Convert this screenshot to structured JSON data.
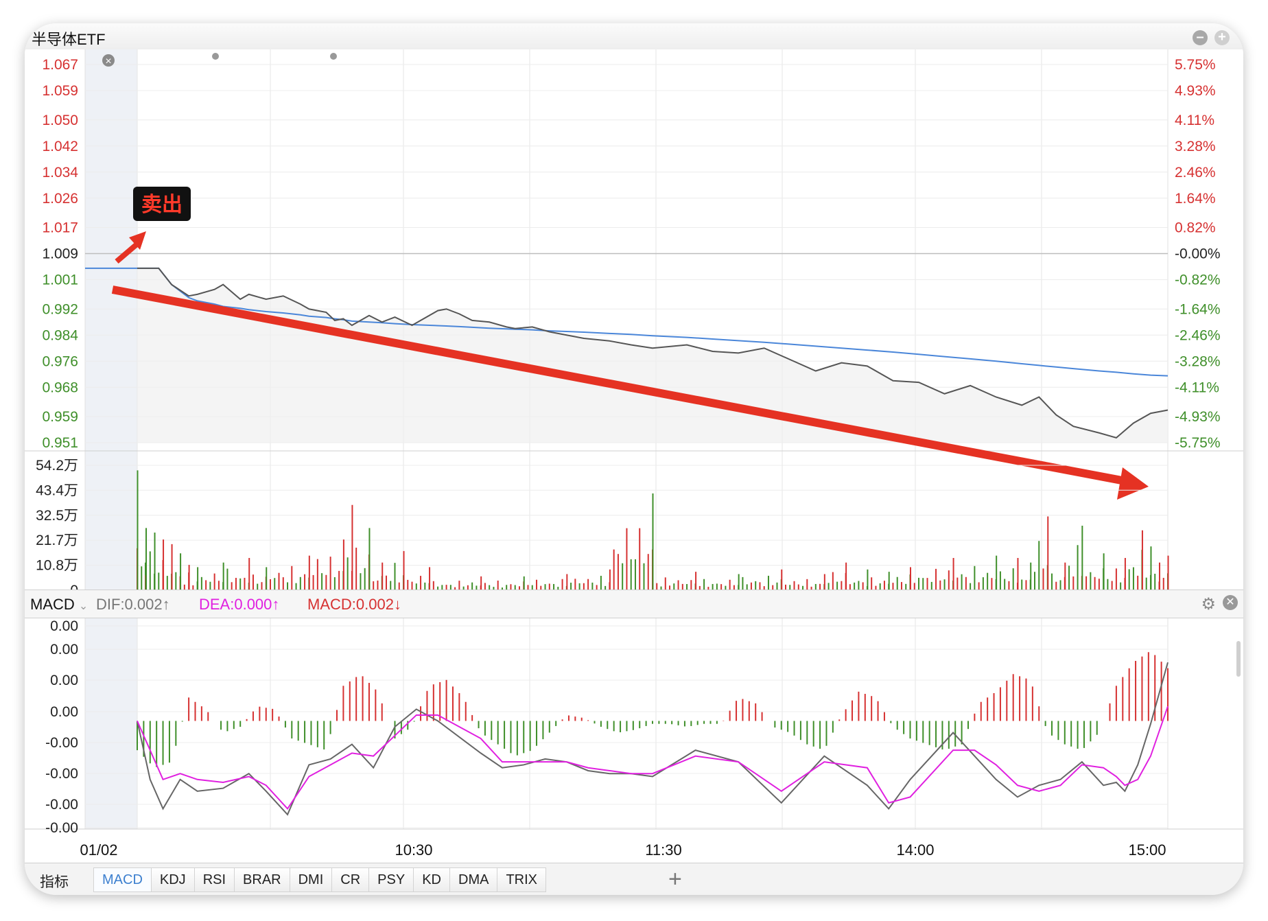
{
  "window": {
    "title": "半导体ETF",
    "minimize_icon": "minus-circle-icon",
    "add_icon": "plus-circle-icon"
  },
  "chart_data": [
    {
      "type": "line",
      "panel": "price",
      "x_ticks": [
        "01/02",
        "10:30",
        "11:30",
        "14:00",
        "15:00"
      ],
      "y_ticks_left": [
        "1.067",
        "1.059",
        "1.050",
        "1.042",
        "1.034",
        "1.026",
        "1.017",
        "1.009",
        "1.001",
        "0.992",
        "0.984",
        "0.976",
        "0.968",
        "0.959",
        "0.951"
      ],
      "y_ticks_right": [
        "5.75%",
        "4.93%",
        "4.11%",
        "3.28%",
        "2.46%",
        "1.64%",
        "0.82%",
        "-0.00%",
        "-0.82%",
        "-1.64%",
        "-2.46%",
        "-3.28%",
        "-4.11%",
        "-4.93%",
        "-5.75%"
      ],
      "ylim": [
        0.951,
        1.067
      ],
      "prev_close": 1.009,
      "x_minutes": [
        0,
        5,
        8,
        12,
        14,
        18,
        20,
        24,
        26,
        30,
        34,
        38,
        40,
        44,
        46,
        48,
        50,
        54,
        57,
        60,
        64,
        70,
        72,
        75,
        78,
        82,
        86,
        88,
        92,
        96,
        100,
        104,
        110,
        115,
        120,
        128,
        134,
        140,
        146,
        152,
        158,
        164,
        170,
        176,
        182,
        188,
        194,
        200,
        206,
        210,
        214,
        218,
        224,
        228,
        232,
        236,
        240
      ],
      "series": [
        {
          "role": "price",
          "values": [
            1.0045,
            1.0045,
            0.9995,
            0.996,
            0.9965,
            0.998,
            0.9995,
            0.995,
            0.9965,
            0.995,
            0.996,
            0.9935,
            0.992,
            0.991,
            0.9885,
            0.989,
            0.987,
            0.99,
            0.988,
            0.9895,
            0.987,
            0.9915,
            0.992,
            0.9905,
            0.9885,
            0.988,
            0.9865,
            0.986,
            0.9865,
            0.985,
            0.984,
            0.983,
            0.9822,
            0.981,
            0.98,
            0.981,
            0.979,
            0.9785,
            0.98,
            0.9765,
            0.973,
            0.9755,
            0.9745,
            0.97,
            0.9695,
            0.966,
            0.9685,
            0.965,
            0.9625,
            0.965,
            0.9595,
            0.956,
            0.954,
            0.9525,
            0.957,
            0.96,
            0.961
          ]
        },
        {
          "role": "avg",
          "values": [
            1.0045,
            1.0045,
            0.9995,
            0.9955,
            0.9945,
            0.9935,
            0.9928,
            0.9922,
            0.9918,
            0.9912,
            0.9908,
            0.9902,
            0.9898,
            0.9894,
            0.989,
            0.9887,
            0.9883,
            0.988,
            0.9878,
            0.9875,
            0.9872,
            0.9869,
            0.9868,
            0.9866,
            0.9864,
            0.9861,
            0.9859,
            0.9858,
            0.9856,
            0.9853,
            0.9851,
            0.9849,
            0.9845,
            0.9842,
            0.9838,
            0.9833,
            0.9828,
            0.9823,
            0.9818,
            0.9812,
            0.9806,
            0.98,
            0.9794,
            0.9788,
            0.9781,
            0.9774,
            0.9767,
            0.976,
            0.9752,
            0.9747,
            0.9742,
            0.9737,
            0.973,
            0.9726,
            0.9721,
            0.9717,
            0.9715
          ]
        }
      ],
      "annotations": [
        {
          "text": "卖出"
        }
      ]
    },
    {
      "type": "bar",
      "panel": "volume",
      "y_ticks": [
        "54.2万",
        "43.4万",
        "32.5万",
        "21.7万",
        "10.8万",
        "0"
      ],
      "ylim": [
        0,
        54.2
      ],
      "unit": "万",
      "x_minutes": [
        0,
        2,
        4,
        6,
        8,
        10,
        12,
        14,
        20,
        26,
        30,
        40,
        48,
        50,
        54,
        57,
        62,
        68,
        80,
        90,
        100,
        110,
        120,
        130,
        140,
        150,
        160,
        165,
        170,
        175,
        180,
        190,
        200,
        205,
        208,
        212,
        216,
        220,
        225,
        230,
        234,
        236,
        238,
        240
      ],
      "values": [
        52,
        27,
        25,
        22,
        20,
        16,
        11,
        10,
        12,
        14,
        10,
        15,
        22,
        37,
        27,
        12,
        17,
        10,
        6,
        6,
        7,
        9,
        42,
        8,
        7,
        9,
        7,
        12,
        9,
        8,
        10,
        14,
        15,
        14,
        12,
        32,
        12,
        28,
        16,
        14,
        26,
        19,
        12,
        15
      ],
      "up": [
        false,
        false,
        false,
        true,
        true,
        false,
        true,
        false,
        false,
        true,
        false,
        true,
        true,
        true,
        false,
        true,
        true,
        true,
        true,
        false,
        true,
        true,
        false,
        true,
        false,
        true,
        true,
        true,
        false,
        false,
        true,
        true,
        false,
        true,
        false,
        true,
        true,
        false,
        false,
        true,
        true,
        false,
        true,
        true
      ]
    },
    {
      "type": "line",
      "panel": "MACD",
      "indicator": "MACD",
      "legend": [
        "DIF:0.002↑",
        "DEA:0.000↑",
        "MACD:0.002↓"
      ],
      "y_ticks": [
        "0.00",
        "0.00",
        "0.00",
        "0.00",
        "-0.00",
        "-0.00",
        "-0.00",
        "-0.00"
      ],
      "ylim": [
        -0.0036,
        0.0032
      ],
      "x_minutes": [
        0,
        3,
        6,
        10,
        14,
        20,
        26,
        30,
        35,
        40,
        45,
        50,
        55,
        60,
        65,
        70,
        80,
        85,
        90,
        95,
        100,
        105,
        110,
        115,
        120,
        130,
        140,
        150,
        160,
        170,
        175,
        180,
        190,
        195,
        200,
        205,
        210,
        215,
        220,
        225,
        228,
        230,
        233,
        236,
        240
      ],
      "series": [
        {
          "name": "DIF",
          "color": "#666666",
          "values": [
            0.0,
            -0.002,
            -0.003,
            -0.002,
            -0.0024,
            -0.0023,
            -0.0018,
            -0.0024,
            -0.0032,
            -0.0015,
            -0.0013,
            -0.0008,
            -0.0016,
            -0.0002,
            0.0004,
            0.0,
            -0.0011,
            -0.0016,
            -0.0015,
            -0.0013,
            -0.0014,
            -0.0017,
            -0.0018,
            -0.0018,
            -0.0019,
            -0.001,
            -0.0014,
            -0.0028,
            -0.0012,
            -0.0022,
            -0.003,
            -0.002,
            -0.0004,
            -0.0012,
            -0.002,
            -0.0026,
            -0.0022,
            -0.002,
            -0.0014,
            -0.0022,
            -0.0021,
            -0.0024,
            -0.0015,
            -0.0001,
            0.002
          ]
        },
        {
          "name": "DEA",
          "color": "#e020e0",
          "values": [
            0.0,
            -0.001,
            -0.002,
            -0.0018,
            -0.002,
            -0.0021,
            -0.0019,
            -0.0022,
            -0.003,
            -0.0019,
            -0.0015,
            -0.0011,
            -0.0012,
            -0.0005,
            0.0002,
            0.0002,
            -0.0006,
            -0.0014,
            -0.0014,
            -0.0014,
            -0.0014,
            -0.0016,
            -0.0017,
            -0.0018,
            -0.0018,
            -0.0012,
            -0.0014,
            -0.0024,
            -0.0014,
            -0.0016,
            -0.0028,
            -0.0026,
            -0.001,
            -0.001,
            -0.0015,
            -0.0022,
            -0.0024,
            -0.0022,
            -0.0015,
            -0.0016,
            -0.0019,
            -0.0022,
            -0.002,
            -0.0012,
            0.0005
          ]
        }
      ],
      "hist_x_minutes": [
        0,
        4,
        8,
        12,
        16,
        20,
        24,
        28,
        32,
        36,
        40,
        44,
        48,
        52,
        56,
        60,
        64,
        68,
        72,
        76,
        80,
        84,
        88,
        92,
        96,
        100,
        104,
        108,
        112,
        116,
        120,
        124,
        128,
        132,
        136,
        140,
        144,
        148,
        152,
        156,
        160,
        164,
        168,
        172,
        176,
        180,
        184,
        188,
        192,
        196,
        200,
        204,
        208,
        212,
        216,
        220,
        224,
        228,
        232,
        236,
        240
      ],
      "hist": [
        -0.001,
        -0.0016,
        -0.0014,
        0.0008,
        0.0004,
        -0.0004,
        -0.0002,
        0.0005,
        0.0004,
        -0.0006,
        -0.0008,
        -0.001,
        0.0012,
        0.0016,
        0.001,
        -0.0006,
        -0.0002,
        0.0012,
        0.0014,
        0.0008,
        -0.0004,
        -0.0008,
        -0.0012,
        -0.001,
        -0.0004,
        0.0002,
        0.0001,
        -0.0002,
        -0.0004,
        -0.0003,
        -0.0001,
        -0.0001,
        -0.0002,
        -0.0001,
        -0.0001,
        0.0008,
        0.0006,
        -0.0002,
        -0.0004,
        -0.0008,
        -0.001,
        0.0002,
        0.001,
        0.0008,
        -0.0002,
        -0.0006,
        -0.0008,
        -0.001,
        -0.0008,
        0.0006,
        0.001,
        0.0016,
        0.0014,
        -0.0004,
        -0.0008,
        -0.001,
        -0.0004,
        0.0012,
        0.002,
        0.0024,
        0.0018
      ]
    }
  ],
  "indicator_header": {
    "name": "MACD",
    "dif": "DIF:0.002↑",
    "dea": "DEA:0.000↑",
    "macd": "MACD:0.002↓",
    "settings_icon": "gear-icon",
    "close_icon": "close-circle-icon"
  },
  "tabs": {
    "label": "指标",
    "items": [
      "MACD",
      "KDJ",
      "RSI",
      "BRAR",
      "DMI",
      "CR",
      "PSY",
      "KD",
      "DMA",
      "TRIX"
    ],
    "active": "MACD",
    "add_icon": "plus-icon"
  },
  "colors": {
    "up": "#d63131",
    "down": "#3f8f2a",
    "avg_line": "#4a86d9",
    "price_line": "#555555",
    "arrow": "#e53223",
    "dea": "#e020e0"
  }
}
